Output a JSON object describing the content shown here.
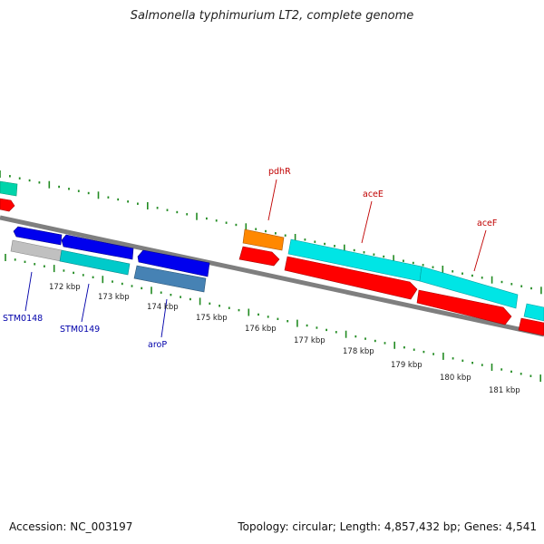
{
  "title": "Salmonella typhimurium LT2, complete genome",
  "footer": {
    "accession": "Accession: NC_003197",
    "topology": "Topology: circular; Length: 4,857,432 bp; Genes: 4,541"
  },
  "colors": {
    "backbone": "#7f7f7f",
    "tick": "#228b22",
    "plus_strand": "#ff0000",
    "minus_strand": "#0000ee",
    "cds_cyan": "#00e5e5",
    "orange": "#ff8800",
    "steel": "#4682b4",
    "grey": "#c0c0c0",
    "teal": "#00d4aa",
    "label_red": "#c00000",
    "label_blue": "#0000aa"
  },
  "scale_labels": [
    "172 kbp",
    "173 kbp",
    "174 kbp",
    "175 kbp",
    "176 kbp",
    "177 kbp",
    "178 kbp",
    "179 kbp",
    "180 kbp",
    "181 kbp"
  ],
  "gene_labels": {
    "pdhR": "pdhR",
    "aceE": "aceE",
    "aceF": "aceF",
    "STM0148": "STM0148",
    "STM0149": "STM0149",
    "aroP": "aroP"
  }
}
